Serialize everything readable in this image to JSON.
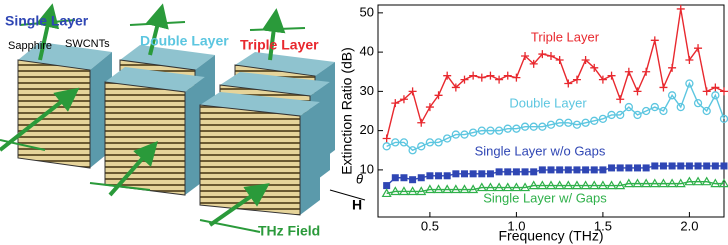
{
  "illustration": {
    "single_layer": "Single Layer",
    "sapphire": "Sapphire",
    "swcnts": "SWCNTs",
    "double_layer": "Double Layer",
    "triple_layer": "Triple Layer",
    "theta": "θ",
    "h_field": "H",
    "thz_field": "THz Field"
  },
  "chart_data": {
    "type": "line",
    "x_label": "Frequency (THz)",
    "y_label": "Extinction Ratio (dB)",
    "x": [
      0.25,
      0.3,
      0.35,
      0.4,
      0.45,
      0.5,
      0.55,
      0.6,
      0.65,
      0.7,
      0.75,
      0.8,
      0.85,
      0.9,
      0.95,
      1.0,
      1.05,
      1.1,
      1.15,
      1.2,
      1.25,
      1.3,
      1.35,
      1.4,
      1.45,
      1.5,
      1.55,
      1.6,
      1.65,
      1.7,
      1.75,
      1.8,
      1.85,
      1.9,
      1.95,
      2.0,
      2.05,
      2.1,
      2.15,
      2.2
    ],
    "series": [
      {
        "name": "Triple Layer",
        "color": "#e8282e",
        "marker": "plus",
        "values": [
          18,
          27,
          28,
          30,
          22,
          26,
          29,
          34,
          31,
          33,
          34,
          33.5,
          34,
          33,
          34,
          33.5,
          39,
          37,
          39.5,
          39,
          38,
          32,
          33,
          38,
          36,
          33,
          34,
          28,
          35,
          30,
          35,
          43,
          31,
          36,
          51,
          38,
          41,
          30,
          31,
          30
        ]
      },
      {
        "name": "Double Layer",
        "color": "#5cc6e0",
        "marker": "circle",
        "values": [
          16,
          17,
          17,
          15,
          16,
          17,
          17,
          18,
          19,
          19,
          19.5,
          20,
          20,
          20,
          20.5,
          20.5,
          21,
          21,
          21,
          21.5,
          22,
          22,
          21.5,
          22,
          22.5,
          23,
          24,
          24,
          26,
          24,
          25,
          26,
          25,
          29,
          26,
          32,
          27,
          25,
          29,
          23
        ]
      },
      {
        "name": "Single Layer w/o Gaps",
        "color": "#2f46b4",
        "marker": "square",
        "values": [
          6,
          8,
          8,
          7.5,
          8,
          8.5,
          8.5,
          8.5,
          9,
          9,
          9,
          9,
          9,
          9.5,
          9.5,
          9.5,
          9.5,
          9.5,
          10,
          10,
          10,
          10,
          10,
          10,
          10,
          10,
          10.5,
          10.5,
          10.5,
          10.5,
          10.5,
          11,
          11,
          11,
          11,
          11,
          11,
          11,
          11,
          11
        ]
      },
      {
        "name": "Single Layer w/ Gaps",
        "color": "#2fb04a",
        "marker": "triangle",
        "values": [
          4,
          4.5,
          4.5,
          4.5,
          4.5,
          5,
          5,
          5,
          5,
          5,
          5,
          5.5,
          5.5,
          5.5,
          5.5,
          5.5,
          5.5,
          6,
          6,
          6,
          6,
          6,
          6,
          6,
          6,
          6,
          6,
          6,
          6.5,
          6.5,
          6.5,
          6.5,
          6.5,
          6.5,
          6.5,
          7,
          7,
          7,
          6.5,
          6.5
        ]
      }
    ],
    "xlim": [
      0.2,
      2.2
    ],
    "xticks": [
      0.5,
      {
        "value": 1,
        "label": "1.0"
      },
      1.5,
      {
        "value": 2,
        "label": "2.0"
      }
    ],
    "ylim": [
      -2,
      52
    ],
    "yticks": [
      10,
      20,
      30,
      40,
      50
    ]
  }
}
